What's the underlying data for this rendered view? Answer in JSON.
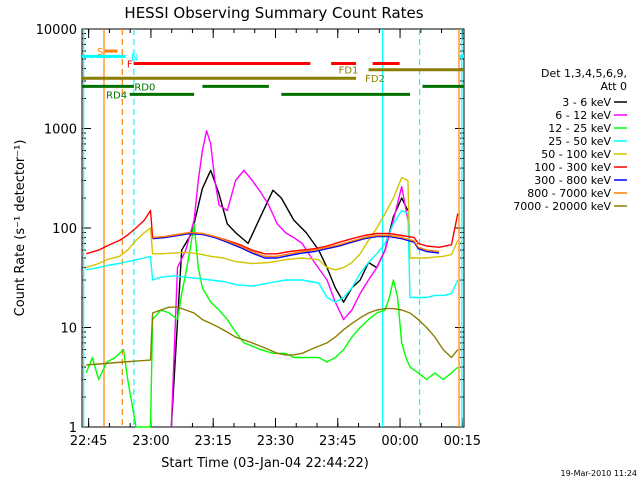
{
  "chart_data": {
    "type": "line",
    "title": "HESSI Observing Summary Count Rates",
    "xlabel": "Start Time (03-Jan-04 22:44:22)",
    "ylabel": "Count Rate (s⁻¹ detector⁻¹)",
    "yscale": "log",
    "ylim": [
      1,
      10000
    ],
    "xlim": [
      -1,
      91
    ],
    "x_units": "minutes after 22:44:22",
    "x_ticks": [
      {
        "label": "22:45",
        "x": 0.6
      },
      {
        "label": "23:00",
        "x": 15.6
      },
      {
        "label": "23:15",
        "x": 30.6
      },
      {
        "label": "23:30",
        "x": 45.6
      },
      {
        "label": "23:45",
        "x": 60.6
      },
      {
        "label": "00:00",
        "x": 75.6
      },
      {
        "label": "00:15",
        "x": 90.6
      }
    ],
    "y_ticks": [
      {
        "label": "1",
        "y": 1
      },
      {
        "label": "10",
        "y": 10
      },
      {
        "label": "100",
        "y": 100
      },
      {
        "label": "1000",
        "y": 1000
      },
      {
        "label": "10000",
        "y": 10000
      }
    ],
    "legend": {
      "position": "right",
      "header": [
        "Det 1,3,4,5,6,9,",
        "Att 0"
      ],
      "entries": [
        "3 - 6 keV",
        "6 - 12 keV",
        "12 - 25 keV",
        "25 - 50 keV",
        "50 - 100 keV",
        "100 - 300 keV",
        "300 - 800 keV",
        "800 - 7000 keV",
        "7000 - 20000 keV"
      ]
    },
    "colors": {
      "3 - 6 keV": "#000000",
      "6 - 12 keV": "#ff00ff",
      "12 - 25 keV": "#00ff00",
      "25 - 50 keV": "#00ffff",
      "50 - 100 keV": "#d4c400",
      "100 - 300 keV": "#ff0000",
      "300 - 800 keV": "#0000ff",
      "800 - 7000 keV": "#ff8000",
      "7000 - 20000 keV": "#8b7d00"
    },
    "series": [
      {
        "name": "3 - 6 keV",
        "x": [
          20.5,
          23,
          25.5,
          28,
          30,
          32,
          34,
          36,
          39,
          42,
          45,
          47,
          50,
          53,
          56,
          58,
          60,
          62,
          64,
          66,
          68,
          70,
          72,
          74,
          76,
          77.5
        ],
        "y": [
          1,
          60,
          90,
          250,
          380,
          220,
          110,
          90,
          70,
          130,
          240,
          200,
          120,
          90,
          60,
          40,
          25,
          18,
          25,
          30,
          45,
          40,
          60,
          130,
          200,
          150
        ]
      },
      {
        "name": "6 - 12 keV",
        "x": [
          20.5,
          22,
          24,
          26,
          27,
          28,
          29,
          30,
          31,
          32,
          34,
          36,
          38,
          40,
          42,
          44,
          46,
          48,
          50,
          52,
          55,
          58,
          60,
          62,
          64,
          66,
          68,
          70,
          72,
          74,
          76,
          77.5
        ],
        "y": [
          1,
          40,
          60,
          120,
          300,
          600,
          950,
          700,
          300,
          170,
          150,
          300,
          380,
          300,
          230,
          170,
          110,
          90,
          80,
          70,
          45,
          30,
          18,
          12,
          15,
          22,
          30,
          40,
          60,
          120,
          260,
          120
        ]
      },
      {
        "name": "12 - 25 keV",
        "x": [
          0,
          1.5,
          3,
          5,
          7,
          9,
          10,
          12,
          14,
          15.5,
          16,
          18,
          20,
          22,
          23,
          24,
          25,
          26,
          27,
          28,
          30,
          32,
          34,
          36,
          38,
          40,
          42,
          45,
          48,
          50,
          53,
          56,
          58,
          60,
          62,
          64,
          66,
          68,
          70,
          72,
          73,
          74,
          75,
          76,
          77,
          78,
          80,
          82,
          84,
          86,
          88,
          89.5
        ],
        "y": [
          3.5,
          5,
          3,
          4.5,
          5,
          6,
          3,
          0.9,
          0.9,
          0.9,
          12,
          15,
          14,
          12,
          22,
          35,
          60,
          110,
          40,
          25,
          18,
          15,
          12,
          9,
          7,
          6.5,
          6,
          5.5,
          5.5,
          5,
          5,
          5,
          4.5,
          5,
          6,
          8,
          10,
          12,
          14,
          15,
          20,
          30,
          20,
          7,
          5,
          4,
          3.5,
          3,
          3.5,
          3,
          3.5,
          4
        ]
      },
      {
        "name": "25 - 50 keV",
        "x": [
          0,
          3,
          5,
          8,
          10,
          12,
          14,
          15.5,
          16,
          18,
          21,
          24,
          27,
          30,
          33,
          36,
          40,
          44,
          48,
          52,
          56,
          58,
          60,
          62,
          64,
          66,
          68,
          70,
          72,
          74,
          76,
          77.5,
          78,
          80,
          82,
          84,
          86,
          88,
          89.5
        ],
        "y": [
          38,
          40,
          42,
          44,
          46,
          48,
          50,
          52,
          30,
          32,
          33,
          32,
          31,
          30,
          29,
          27,
          26,
          28,
          30,
          30,
          28,
          20,
          18,
          20,
          25,
          35,
          45,
          55,
          70,
          110,
          150,
          140,
          20,
          20,
          20,
          21,
          21,
          22,
          30
        ]
      },
      {
        "name": "50 - 100 keV",
        "x": [
          0,
          3,
          5,
          8,
          10,
          12,
          14,
          15.5,
          16,
          18,
          21,
          24,
          27,
          30,
          33,
          36,
          40,
          44,
          48,
          52,
          56,
          58,
          60,
          62,
          64,
          66,
          68,
          70,
          72,
          74,
          76,
          77.5,
          78,
          80,
          82,
          84,
          86,
          88,
          89.5
        ],
        "y": [
          40,
          44,
          48,
          52,
          60,
          75,
          90,
          100,
          55,
          55,
          56,
          57,
          55,
          52,
          50,
          46,
          44,
          45,
          48,
          50,
          48,
          40,
          38,
          40,
          45,
          55,
          75,
          100,
          140,
          200,
          320,
          300,
          50,
          50,
          50,
          51,
          52,
          54,
          75
        ]
      },
      {
        "name": "100 - 300 keV",
        "x": [
          0,
          3,
          5,
          8,
          10,
          12,
          14,
          15.5,
          16,
          19,
          22,
          25,
          28,
          31,
          34,
          37,
          40,
          43,
          46,
          49,
          52,
          55,
          58,
          61,
          64,
          67,
          70,
          73,
          76,
          79,
          80,
          82,
          85,
          88,
          89.5
        ],
        "y": [
          55,
          60,
          66,
          75,
          85,
          100,
          120,
          150,
          80,
          82,
          86,
          90,
          88,
          82,
          75,
          68,
          60,
          55,
          55,
          58,
          60,
          62,
          66,
          72,
          78,
          84,
          88,
          88,
          84,
          80,
          70,
          66,
          64,
          68,
          140
        ]
      },
      {
        "name": "300 - 800 keV",
        "x": [
          16,
          19,
          22,
          25,
          28,
          31,
          34,
          37,
          40,
          43,
          46,
          49,
          52,
          55,
          58,
          61,
          64,
          67,
          70,
          73,
          76,
          79,
          80,
          82,
          85
        ],
        "y": [
          78,
          80,
          84,
          88,
          86,
          80,
          72,
          64,
          56,
          50,
          50,
          53,
          56,
          58,
          62,
          66,
          72,
          78,
          82,
          82,
          78,
          72,
          62,
          58,
          56
        ]
      },
      {
        "name": "800 - 7000 keV",
        "x": [
          16,
          19,
          22,
          25,
          28,
          31,
          34,
          37,
          40,
          43,
          46,
          49,
          52,
          55,
          58,
          61,
          64,
          67,
          70,
          73,
          76,
          79,
          80,
          82,
          85
        ],
        "y": [
          80,
          82,
          86,
          90,
          88,
          82,
          74,
          66,
          58,
          52,
          52,
          55,
          58,
          60,
          64,
          68,
          74,
          80,
          84,
          84,
          80,
          74,
          64,
          60,
          58
        ]
      },
      {
        "name": "7000 - 20000 keV",
        "x": [
          0,
          3,
          6,
          9,
          12,
          15.5,
          16,
          18,
          20,
          22,
          24,
          26,
          28,
          30,
          32,
          34,
          36,
          38,
          40,
          42,
          44,
          46,
          48,
          50,
          52,
          54,
          56,
          58,
          60,
          62,
          64,
          66,
          68,
          70,
          72,
          74,
          76,
          78,
          80,
          82,
          84,
          86,
          88,
          89.5
        ],
        "y": [
          4.2,
          4.3,
          4.4,
          4.5,
          4.6,
          4.7,
          14,
          15,
          16,
          16,
          15,
          14,
          12,
          11,
          10,
          9,
          8,
          7.5,
          7,
          6.5,
          6,
          5.5,
          5.3,
          5.3,
          5.5,
          6,
          6.5,
          7,
          8,
          9.5,
          11,
          12.5,
          14,
          15,
          15.5,
          15.5,
          15,
          14,
          12,
          10,
          8,
          6,
          5,
          6
        ]
      }
    ],
    "annotations": [
      {
        "label": "S",
        "color": "#ff8000",
        "y": 6000,
        "x0": 4.5,
        "x1": 7.5,
        "label_x": 2.6
      },
      {
        "label": "N",
        "color": "#00ffff",
        "y": 5300,
        "x0": -1,
        "x1": 9.5,
        "label_x": 10.8
      },
      {
        "label": "N",
        "color": "#00ffff",
        "y": 5300,
        "x0": 90,
        "x1": 91,
        "label_x": null
      },
      {
        "label": "F",
        "color": "#ff0000",
        "y": 4500,
        "x0": 11.5,
        "x1": 54,
        "label_x": 9.8
      },
      {
        "label": "F",
        "color": "#ff0000",
        "y": 4500,
        "x0": 59,
        "x1": 65,
        "label_x": null
      },
      {
        "label": "F",
        "color": "#ff0000",
        "y": 4500,
        "x0": 69,
        "x1": 75.5,
        "label_x": null
      },
      {
        "label": "FD1",
        "color": "#8b7d00",
        "y": 3900,
        "x0": 68,
        "x1": 91,
        "label_x": 60.8
      },
      {
        "label": "FD2",
        "color": "#8b7d00",
        "y": 3200,
        "x0": -1,
        "x1": 65,
        "label_x": 67.2
      },
      {
        "label": "RD0",
        "color": "#007000",
        "y": 2650,
        "x0": -1,
        "x1": 11.5,
        "label_x": 11.6
      },
      {
        "label": "RD0",
        "color": "#007000",
        "y": 2650,
        "x0": 28,
        "x1": 44,
        "label_x": null
      },
      {
        "label": "RD0",
        "color": "#007000",
        "y": 2650,
        "x0": 81,
        "x1": 91,
        "label_x": null
      },
      {
        "label": "RD4",
        "color": "#007000",
        "y": 2200,
        "x0": 10.5,
        "x1": 26,
        "label_x": 4.8
      },
      {
        "label": "RD4",
        "color": "#007000",
        "y": 2200,
        "x0": 47,
        "x1": 78,
        "label_x": null
      }
    ],
    "vlines": [
      {
        "x": -0.6,
        "color": "#00ffff",
        "dash": false
      },
      {
        "x": 4.3,
        "color": "#ff8000",
        "dash": false
      },
      {
        "x": 8.7,
        "color": "#ff8000",
        "dash": true
      },
      {
        "x": 11.5,
        "color": "#00ffff",
        "dash": true
      },
      {
        "x": 71.4,
        "color": "#00ffff",
        "dash": false
      },
      {
        "x": 80.3,
        "color": "#00ffff",
        "dash": true
      },
      {
        "x": 89.8,
        "color": "#ff8000",
        "dash": false
      },
      {
        "x": 90.5,
        "color": "#00ffff",
        "dash": false
      }
    ],
    "footer_timestamp": "19-Mar-2010 11:24"
  }
}
